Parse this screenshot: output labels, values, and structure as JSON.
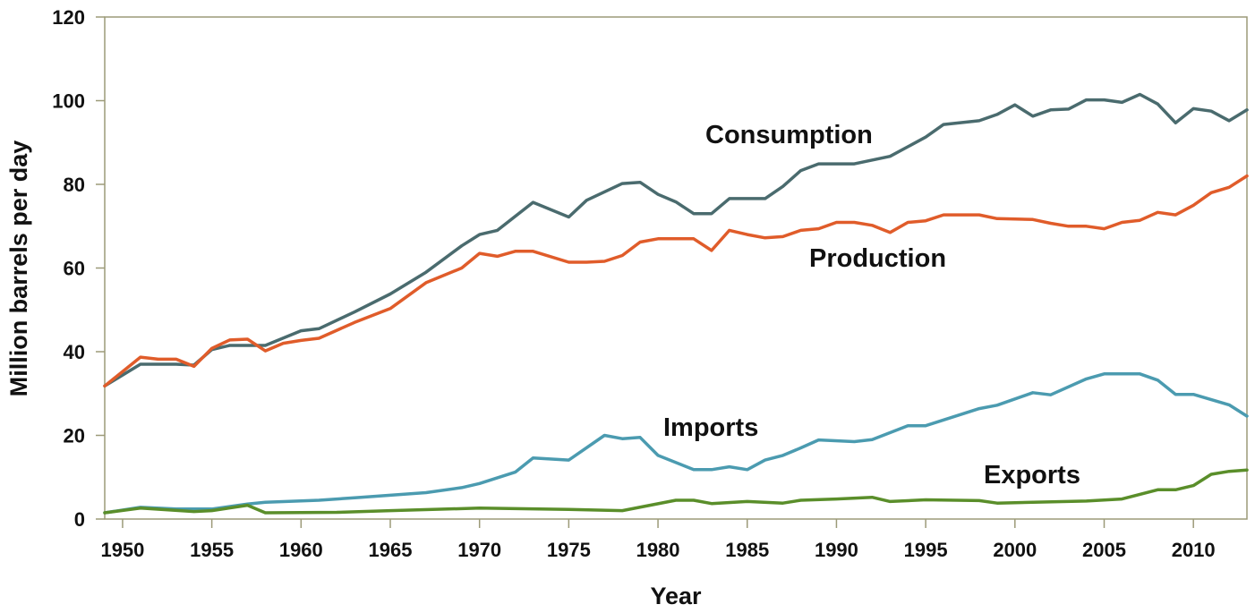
{
  "chart_data": {
    "type": "line",
    "title": "",
    "xlabel": "Year",
    "ylabel": "Million barrels per day",
    "xlim": [
      1949,
      2013
    ],
    "ylim": [
      0,
      120
    ],
    "x_ticks": [
      1950,
      1955,
      1960,
      1965,
      1970,
      1975,
      1980,
      1985,
      1990,
      1995,
      2000,
      2005,
      2010
    ],
    "y_ticks": [
      0,
      20,
      40,
      60,
      80,
      100,
      120
    ],
    "grid": false,
    "legend": "inline labels",
    "colors": {
      "axis": "#9c9a78",
      "text": "#111111"
    },
    "series": [
      {
        "name": "Consumption",
        "color": "#4a6b6e",
        "points": [
          [
            1949,
            31.8
          ],
          [
            1951,
            37
          ],
          [
            1953,
            37
          ],
          [
            1954,
            36.8
          ],
          [
            1955,
            40.5
          ],
          [
            1956,
            41.5
          ],
          [
            1958,
            41.5
          ],
          [
            1960,
            45
          ],
          [
            1961,
            45.5
          ],
          [
            1963,
            49.5
          ],
          [
            1965,
            53.8
          ],
          [
            1967,
            59
          ],
          [
            1969,
            65.3
          ],
          [
            1970,
            68
          ],
          [
            1971,
            69
          ],
          [
            1973,
            75.7
          ],
          [
            1975,
            72.2
          ],
          [
            1976,
            76.2
          ],
          [
            1978,
            80.2
          ],
          [
            1979,
            80.5
          ],
          [
            1980,
            77.6
          ],
          [
            1981,
            75.8
          ],
          [
            1982,
            73
          ],
          [
            1983,
            73
          ],
          [
            1984,
            76.6
          ],
          [
            1986,
            76.6
          ],
          [
            1987,
            79.5
          ],
          [
            1988,
            83.3
          ],
          [
            1989,
            84.9
          ],
          [
            1991,
            84.9
          ],
          [
            1993,
            86.7
          ],
          [
            1995,
            91.3
          ],
          [
            1996,
            94.3
          ],
          [
            1998,
            95.2
          ],
          [
            1999,
            96.7
          ],
          [
            2000,
            99
          ],
          [
            2001,
            96.3
          ],
          [
            2002,
            97.8
          ],
          [
            2003,
            98
          ],
          [
            2004,
            100.2
          ],
          [
            2005,
            100.2
          ],
          [
            2006,
            99.6
          ],
          [
            2007,
            101.5
          ],
          [
            2008,
            99.2
          ],
          [
            2009,
            94.7
          ],
          [
            2010,
            98.1
          ],
          [
            2011,
            97.5
          ],
          [
            2012,
            95.2
          ],
          [
            2013,
            97.8
          ]
        ]
      },
      {
        "name": "Production",
        "color": "#e05c2a",
        "points": [
          [
            1949,
            31.8
          ],
          [
            1951,
            38.7
          ],
          [
            1952,
            38.2
          ],
          [
            1953,
            38.2
          ],
          [
            1954,
            36.5
          ],
          [
            1955,
            40.8
          ],
          [
            1956,
            42.8
          ],
          [
            1957,
            43
          ],
          [
            1958,
            40.2
          ],
          [
            1959,
            42
          ],
          [
            1960,
            42.7
          ],
          [
            1961,
            43.2
          ],
          [
            1963,
            47
          ],
          [
            1965,
            50.3
          ],
          [
            1967,
            56.5
          ],
          [
            1969,
            60
          ],
          [
            1970,
            63.5
          ],
          [
            1971,
            62.8
          ],
          [
            1972,
            64
          ],
          [
            1973,
            64
          ],
          [
            1975,
            61.4
          ],
          [
            1976,
            61.4
          ],
          [
            1977,
            61.6
          ],
          [
            1978,
            63
          ],
          [
            1979,
            66.2
          ],
          [
            1980,
            67
          ],
          [
            1982,
            67
          ],
          [
            1983,
            64.2
          ],
          [
            1984,
            69
          ],
          [
            1985,
            68
          ],
          [
            1986,
            67.2
          ],
          [
            1987,
            67.5
          ],
          [
            1988,
            69
          ],
          [
            1989,
            69.4
          ],
          [
            1990,
            70.9
          ],
          [
            1991,
            70.9
          ],
          [
            1992,
            70.2
          ],
          [
            1993,
            68.5
          ],
          [
            1994,
            70.9
          ],
          [
            1995,
            71.3
          ],
          [
            1996,
            72.7
          ],
          [
            1998,
            72.7
          ],
          [
            1999,
            71.8
          ],
          [
            2001,
            71.6
          ],
          [
            2002,
            70.7
          ],
          [
            2003,
            70
          ],
          [
            2004,
            70
          ],
          [
            2005,
            69.4
          ],
          [
            2006,
            70.9
          ],
          [
            2007,
            71.4
          ],
          [
            2008,
            73.3
          ],
          [
            2009,
            72.7
          ],
          [
            2010,
            75
          ],
          [
            2011,
            78
          ],
          [
            2012,
            79.3
          ],
          [
            2013,
            82
          ]
        ]
      },
      {
        "name": "Imports",
        "color": "#4b9bb0",
        "points": [
          [
            1949,
            1.5
          ],
          [
            1951,
            2.8
          ],
          [
            1953,
            2.4
          ],
          [
            1955,
            2.4
          ],
          [
            1957,
            3.6
          ],
          [
            1958,
            4
          ],
          [
            1961,
            4.5
          ],
          [
            1963,
            5.1
          ],
          [
            1965,
            5.7
          ],
          [
            1967,
            6.3
          ],
          [
            1969,
            7.5
          ],
          [
            1970,
            8.5
          ],
          [
            1972,
            11.2
          ],
          [
            1973,
            14.6
          ],
          [
            1975,
            14.1
          ],
          [
            1977,
            20
          ],
          [
            1978,
            19.2
          ],
          [
            1979,
            19.5
          ],
          [
            1980,
            15.2
          ],
          [
            1982,
            11.8
          ],
          [
            1983,
            11.8
          ],
          [
            1984,
            12.5
          ],
          [
            1985,
            11.8
          ],
          [
            1986,
            14.1
          ],
          [
            1987,
            15.2
          ],
          [
            1988,
            17
          ],
          [
            1989,
            18.9
          ],
          [
            1991,
            18.5
          ],
          [
            1992,
            19
          ],
          [
            1994,
            22.3
          ],
          [
            1995,
            22.3
          ],
          [
            1998,
            26.4
          ],
          [
            1999,
            27.2
          ],
          [
            2001,
            30.2
          ],
          [
            2002,
            29.7
          ],
          [
            2004,
            33.5
          ],
          [
            2005,
            34.7
          ],
          [
            2007,
            34.7
          ],
          [
            2008,
            33.2
          ],
          [
            2009,
            29.8
          ],
          [
            2010,
            29.8
          ],
          [
            2012,
            27.3
          ],
          [
            2013,
            24.6
          ]
        ]
      },
      {
        "name": "Exports",
        "color": "#5a8e2a",
        "points": [
          [
            1949,
            1.5
          ],
          [
            1951,
            2.6
          ],
          [
            1954,
            1.8
          ],
          [
            1955,
            2
          ],
          [
            1957,
            3.3
          ],
          [
            1958,
            1.5
          ],
          [
            1962,
            1.6
          ],
          [
            1965,
            2
          ],
          [
            1970,
            2.6
          ],
          [
            1975,
            2.3
          ],
          [
            1978,
            2
          ],
          [
            1981,
            4.5
          ],
          [
            1982,
            4.5
          ],
          [
            1983,
            3.7
          ],
          [
            1985,
            4.2
          ],
          [
            1987,
            3.8
          ],
          [
            1988,
            4.5
          ],
          [
            1990,
            4.8
          ],
          [
            1992,
            5.2
          ],
          [
            1993,
            4.2
          ],
          [
            1995,
            4.6
          ],
          [
            1998,
            4.4
          ],
          [
            1999,
            3.8
          ],
          [
            2004,
            4.3
          ],
          [
            2006,
            4.8
          ],
          [
            2008,
            7
          ],
          [
            2009,
            7
          ],
          [
            2010,
            8
          ],
          [
            2011,
            10.7
          ],
          [
            2012,
            11.4
          ],
          [
            2013,
            11.7
          ]
        ]
      }
    ]
  }
}
